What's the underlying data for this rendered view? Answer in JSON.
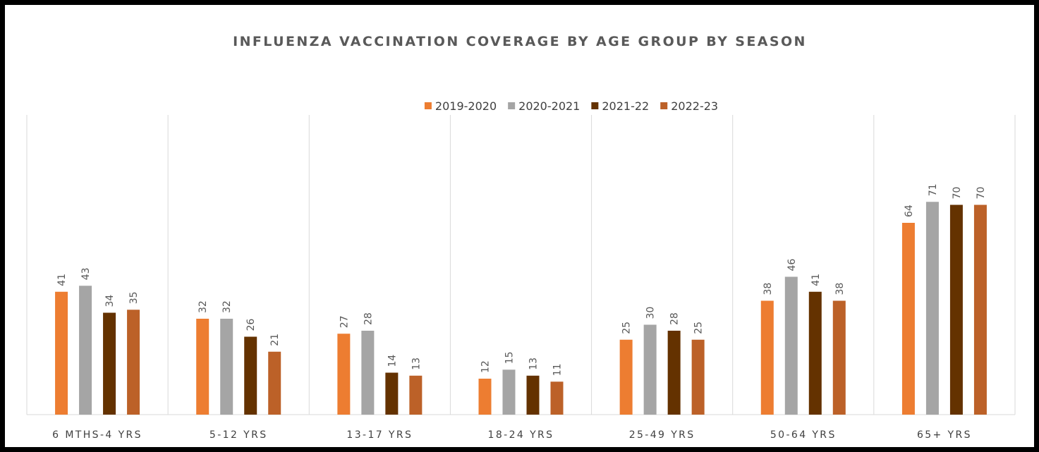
{
  "chart_data": {
    "type": "bar",
    "title": "INFLUENZA VACCINATION COVERAGE BY AGE GROUP BY SEASON",
    "xlabel": "",
    "ylabel": "",
    "ylim": [
      0,
      80
    ],
    "grid": "vertical category separators",
    "legend_position": "top",
    "categories": [
      "6 MTHS-4 YRS",
      "5-12 YRS",
      "13-17 YRS",
      "18-24 YRS",
      "25-49 YRS",
      "50-64 YRS",
      "65+ YRS"
    ],
    "series": [
      {
        "name": "2019-2020",
        "color": "#ED7D31",
        "values": [
          41,
          32,
          27,
          12,
          25,
          38,
          64
        ]
      },
      {
        "name": "2020-2021",
        "color": "#A5A5A5",
        "values": [
          43,
          32,
          28,
          15,
          30,
          46,
          71
        ]
      },
      {
        "name": "2021-22",
        "color": "#643200",
        "values": [
          34,
          26,
          14,
          13,
          28,
          41,
          70
        ]
      },
      {
        "name": "2022-23",
        "color": "#BC6128",
        "values": [
          35,
          21,
          13,
          11,
          25,
          38,
          70
        ]
      }
    ]
  }
}
